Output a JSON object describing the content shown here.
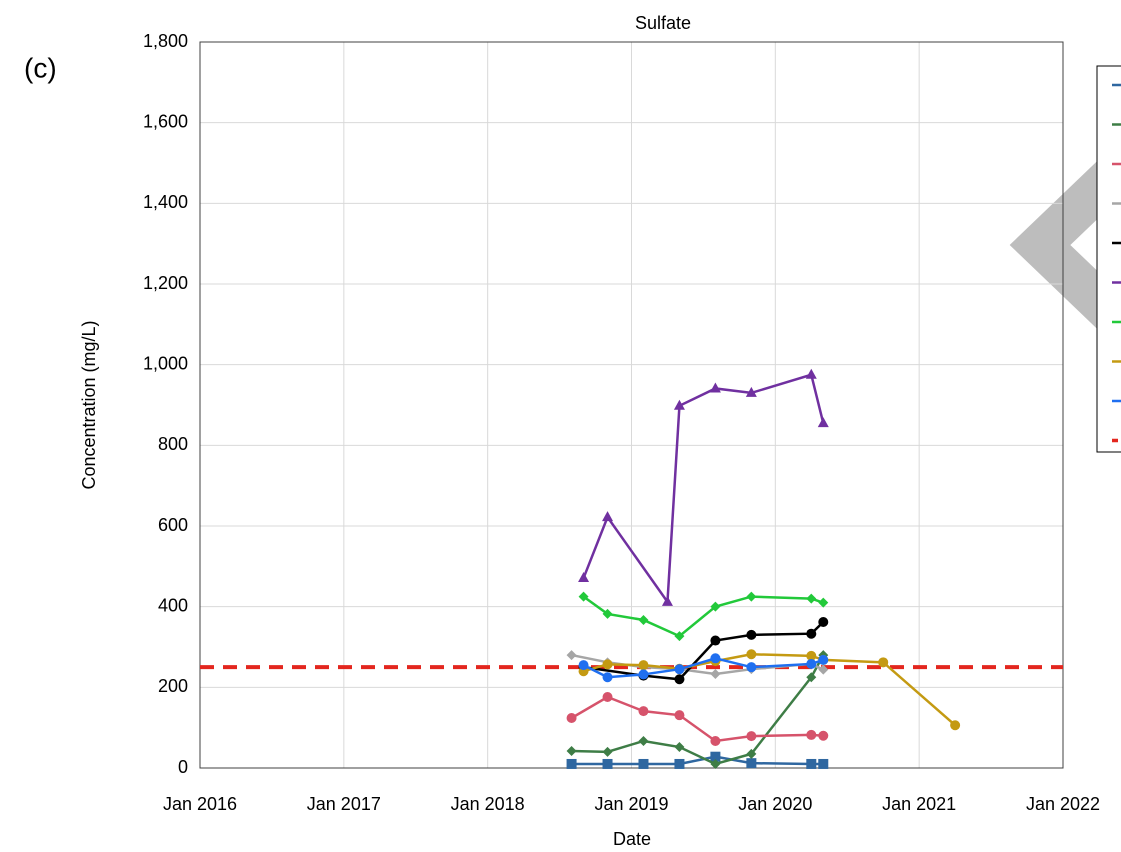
{
  "chart_data": {
    "type": "line",
    "title": "Sulfate",
    "panel_label": "(c)",
    "x_label": "Date",
    "y_label": "Concentration (mg/L)",
    "xlim": [
      "2016-01",
      "2022-01"
    ],
    "xticks": [
      {
        "value": "2016-01",
        "label": "Jan 2016"
      },
      {
        "value": "2017-01",
        "label": "Jan 2017"
      },
      {
        "value": "2018-01",
        "label": "Jan 2018"
      },
      {
        "value": "2019-01",
        "label": "Jan 2019"
      },
      {
        "value": "2020-01",
        "label": "Jan 2020"
      },
      {
        "value": "2021-01",
        "label": "Jan 2021"
      },
      {
        "value": "2022-01",
        "label": "Jan 2022"
      }
    ],
    "ylim": [
      0,
      1800
    ],
    "yticks": [
      0,
      200,
      400,
      600,
      800,
      {
        "value": 1000,
        "label": "1,000"
      },
      {
        "value": 1200,
        "label": "1,200"
      },
      {
        "value": 1400,
        "label": "1,400"
      },
      {
        "value": 1600,
        "label": "1,600"
      },
      {
        "value": 1800,
        "label": "1,800"
      }
    ],
    "grid": true,
    "legend": "right",
    "series": [
      {
        "color": "#2f67a0",
        "marker": "square",
        "x": [
          "2018-08",
          "2018-11",
          "2019-02",
          "2019-05",
          "2019-08",
          "2019-11",
          "2020-04",
          "2020-05"
        ],
        "values": [
          10,
          10,
          10,
          10,
          28,
          12,
          10,
          10
        ]
      },
      {
        "color": "#3e7d46",
        "marker": "diamond",
        "x": [
          "2018-08",
          "2018-11",
          "2019-02",
          "2019-05",
          "2019-08",
          "2019-11",
          "2020-04",
          "2020-05"
        ],
        "values": [
          42,
          40,
          67,
          52,
          10,
          35,
          225,
          280
        ]
      },
      {
        "color": "#d6536b",
        "marker": "circle",
        "x": [
          "2018-08",
          "2018-11",
          "2019-02",
          "2019-05",
          "2019-08",
          "2019-11",
          "2020-04",
          "2020-05"
        ],
        "values": [
          124,
          176,
          141,
          131,
          67,
          79,
          82,
          80
        ]
      },
      {
        "color": "#a6a6a6",
        "marker": "diamond",
        "x": [
          "2018-08",
          "2018-11",
          "2019-02",
          "2019-05",
          "2019-08",
          "2019-11",
          "2020-04",
          "2020-05"
        ],
        "values": [
          280,
          262,
          250,
          245,
          233,
          245,
          258,
          244
        ]
      },
      {
        "color": "#000000",
        "marker": "circle",
        "x": [
          "2018-09",
          "2019-02",
          "2019-05",
          "2019-08",
          "2019-11",
          "2020-04",
          "2020-05"
        ],
        "values": [
          250,
          229,
          220,
          316,
          330,
          333,
          362
        ]
      },
      {
        "color": "#7030a0",
        "marker": "triangle",
        "x": [
          "2018-09",
          "2018-11",
          "2019-04",
          "2019-05",
          "2019-08",
          "2019-11",
          "2020-04",
          "2020-05"
        ],
        "values": [
          471,
          622,
          412,
          898,
          941,
          930,
          975,
          855
        ]
      },
      {
        "color": "#22c93a",
        "marker": "diamond",
        "x": [
          "2018-09",
          "2018-11",
          "2019-02",
          "2019-05",
          "2019-08",
          "2019-11",
          "2020-04",
          "2020-05"
        ],
        "values": [
          425,
          382,
          367,
          327,
          400,
          425,
          420,
          410
        ]
      },
      {
        "color": "#c49a12",
        "marker": "circle",
        "x": [
          "2018-09",
          "2018-11",
          "2019-02",
          "2019-05",
          "2019-08",
          "2019-11",
          "2020-04",
          "2020-05",
          "2020-10",
          "2021-04"
        ],
        "values": [
          240,
          257,
          255,
          246,
          265,
          282,
          278,
          268,
          262,
          106
        ]
      },
      {
        "color": "#1f6ff0",
        "marker": "circle",
        "x": [
          "2018-09",
          "2018-11",
          "2019-02",
          "2019-05",
          "2019-08",
          "2019-11",
          "2020-04",
          "2020-05"
        ],
        "values": [
          255,
          225,
          232,
          245,
          272,
          250,
          258,
          268
        ]
      }
    ],
    "reference_line": {
      "value": 250,
      "color": "#e3261e"
    }
  }
}
